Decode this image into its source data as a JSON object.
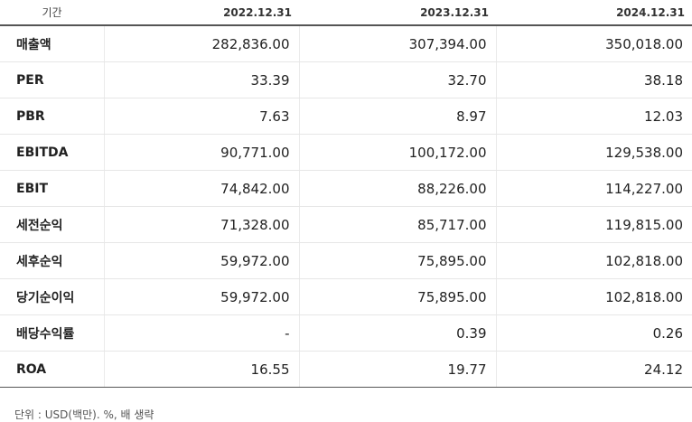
{
  "table": {
    "header": [
      "기간",
      "2022.12.31",
      "2023.12.31",
      "2024.12.31"
    ],
    "rows": [
      {
        "label": "매출액",
        "values": [
          "282,836.00",
          "307,394.00",
          "350,018.00"
        ]
      },
      {
        "label": "PER",
        "values": [
          "33.39",
          "32.70",
          "38.18"
        ]
      },
      {
        "label": "PBR",
        "values": [
          "7.63",
          "8.97",
          "12.03"
        ]
      },
      {
        "label": "EBITDA",
        "values": [
          "90,771.00",
          "100,172.00",
          "129,538.00"
        ]
      },
      {
        "label": "EBIT",
        "values": [
          "74,842.00",
          "88,226.00",
          "114,227.00"
        ]
      },
      {
        "label": "세전순익",
        "values": [
          "71,328.00",
          "85,717.00",
          "119,815.00"
        ]
      },
      {
        "label": "세후순익",
        "values": [
          "59,972.00",
          "75,895.00",
          "102,818.00"
        ]
      },
      {
        "label": "당기순이익",
        "values": [
          "59,972.00",
          "75,895.00",
          "102,818.00"
        ]
      },
      {
        "label": "배당수익률",
        "values": [
          "-",
          "0.39",
          "0.26"
        ]
      },
      {
        "label": "ROA",
        "values": [
          "16.55",
          "19.77",
          "24.12"
        ]
      }
    ]
  },
  "footnote": "단위 : USD(백만). %, 배 생략"
}
